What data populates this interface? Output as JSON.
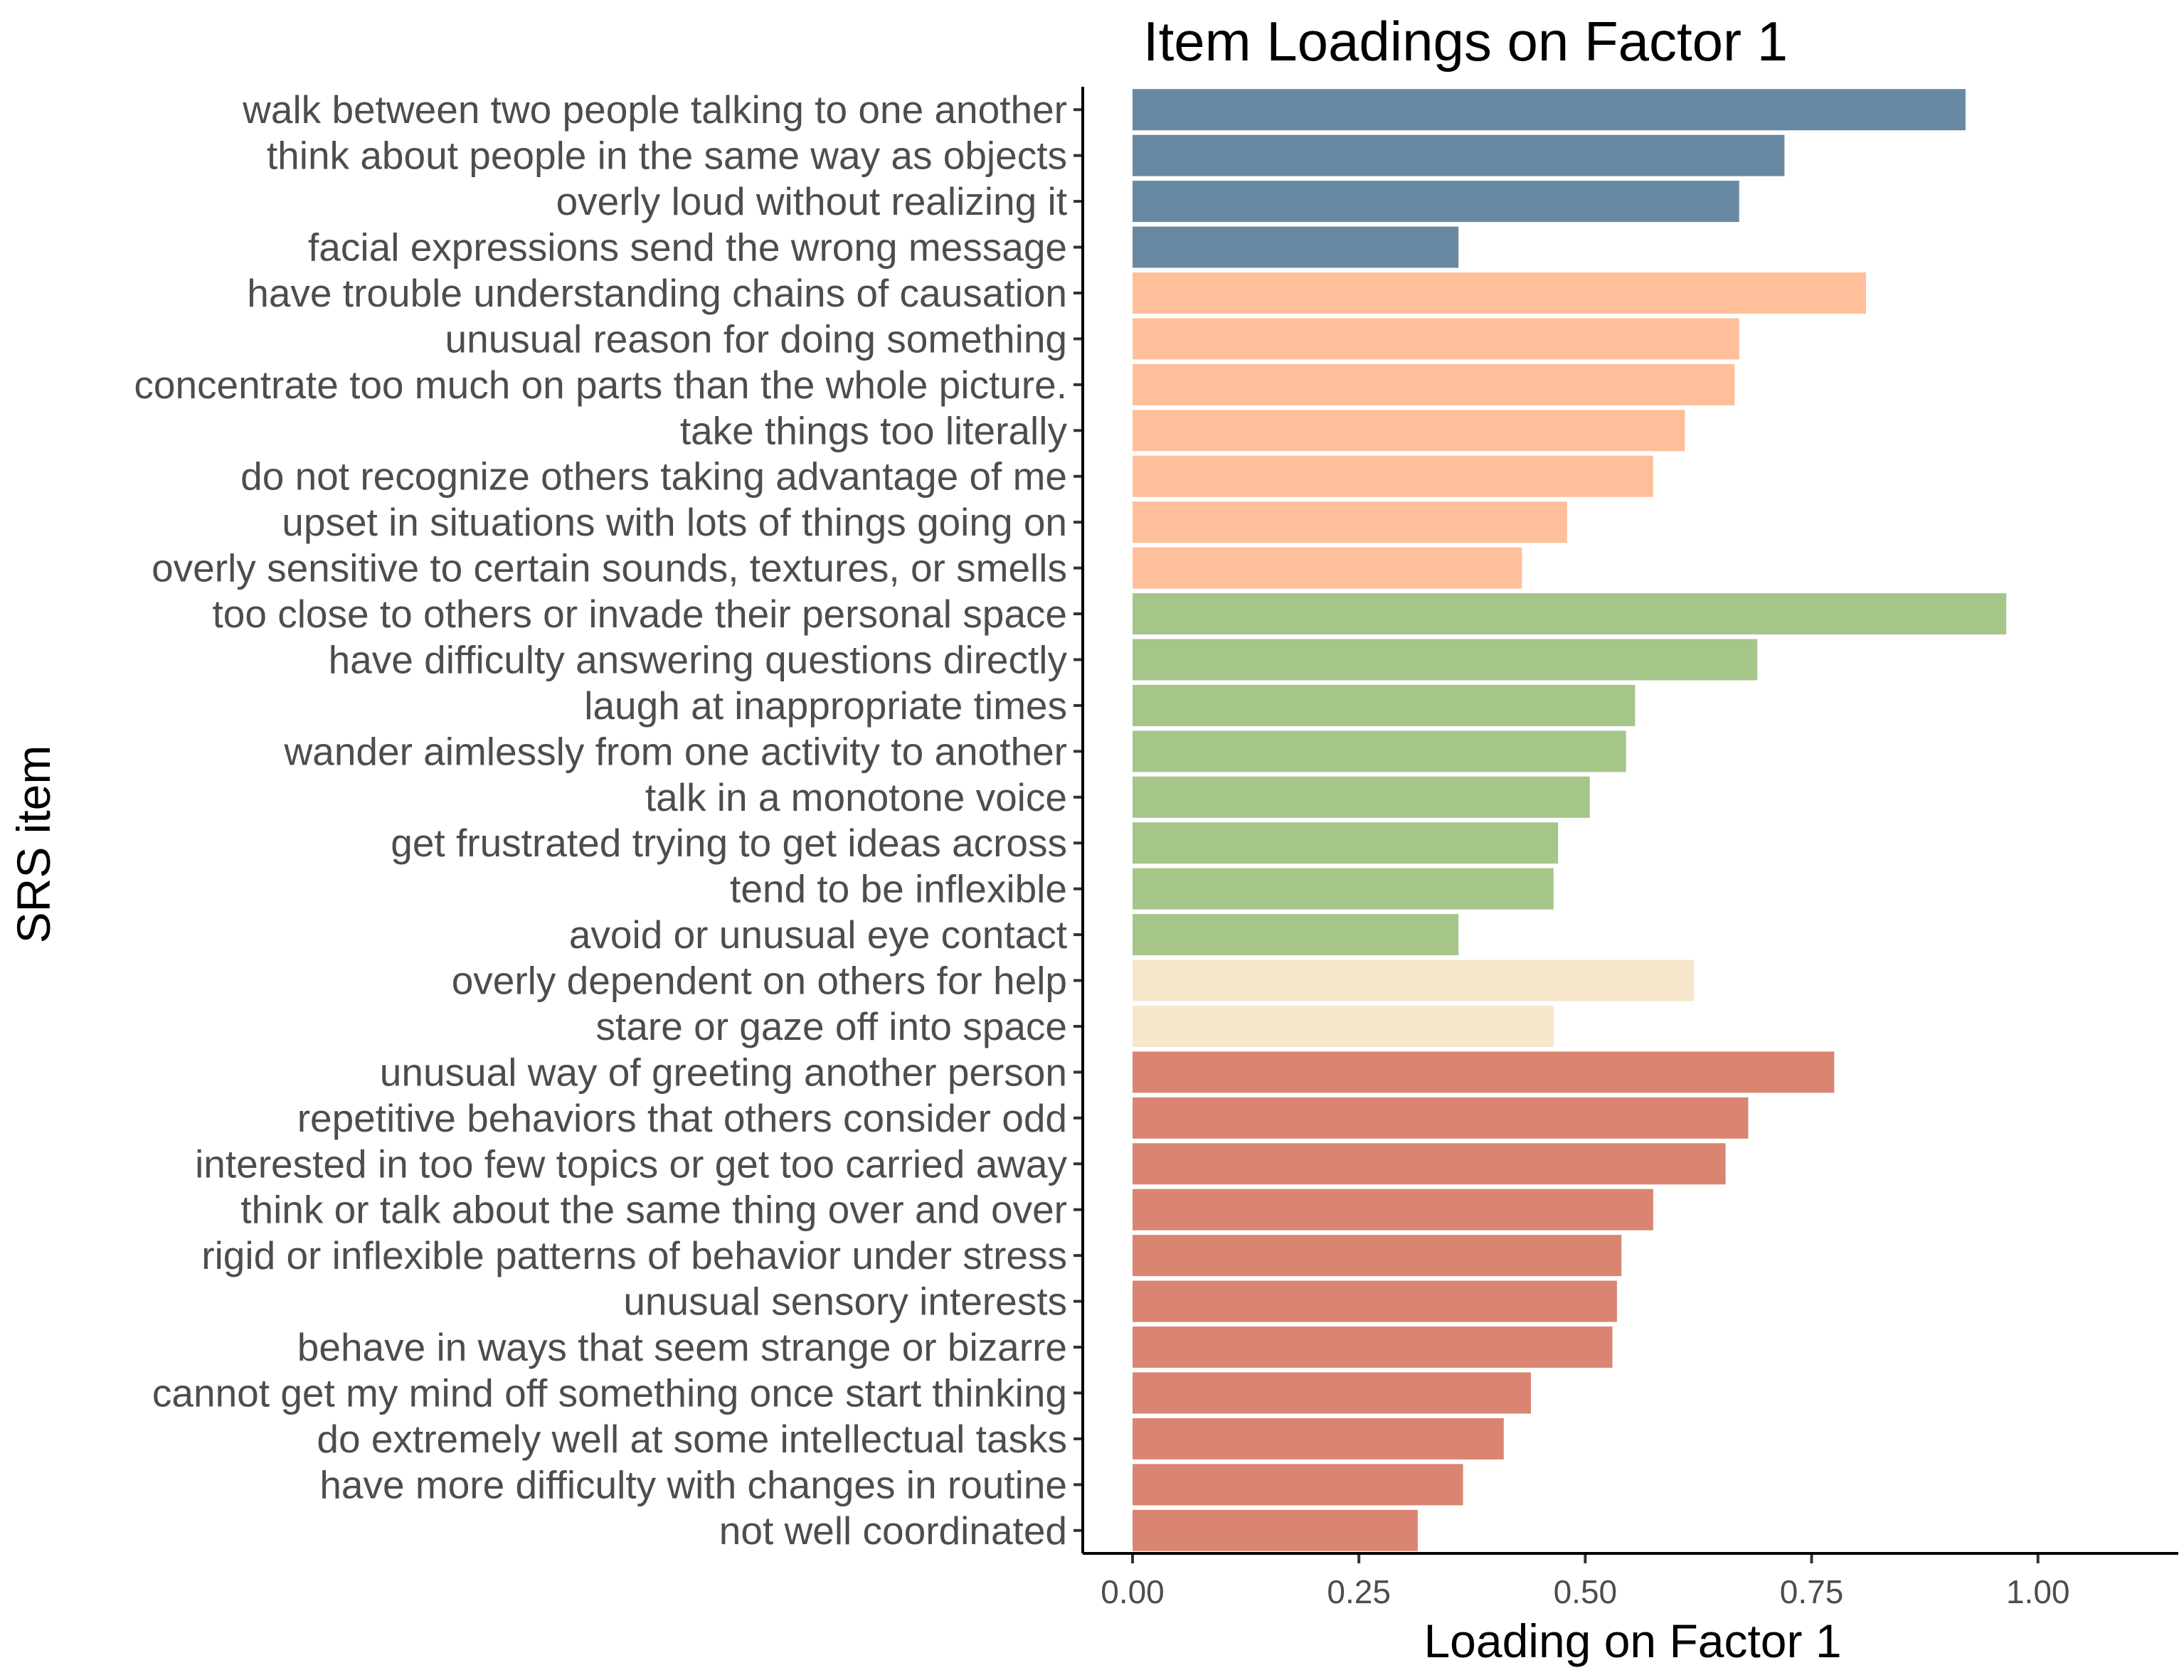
{
  "chart_data": {
    "type": "bar",
    "orientation": "horizontal",
    "title": "Item Loadings on Factor 1",
    "xlabel": "Loading on Factor 1",
    "ylabel": "SRS item",
    "xlim": [
      -0.055,
      1.155
    ],
    "xticks": [
      0,
      0.25,
      0.5,
      0.75,
      1
    ],
    "xtick_labels": [
      "0.00",
      "0.25",
      "0.50",
      "0.75",
      "1.00"
    ],
    "grid": false,
    "legend": "none",
    "categories": [
      "walk between two people talking to one another",
      "think about people in the same way as objects",
      "overly loud without realizing it",
      "facial expressions send the wrong message",
      "have trouble understanding chains of causation",
      "unusual reason for doing something",
      "concentrate too much on parts than the whole picture.",
      "take things too literally",
      "do not recognize others taking advantage of me",
      "upset in situations with lots of things going on",
      "overly sensitive to certain sounds, textures, or smells",
      "too close to others or invade their personal space",
      "have difficulty answering questions directly",
      "laugh at inappropriate times",
      "wander aimlessly from one activity to another",
      "talk in a monotone voice",
      "get frustrated trying to get ideas across",
      "tend to be inflexible",
      "avoid or unusual eye contact",
      "overly dependent on others for help",
      "stare or gaze off into space",
      "unusual way of greeting another person",
      "repetitive behaviors that others consider odd",
      "interested in too few topics or get too carried away",
      "think or talk about the same thing over and over",
      "rigid or inflexible patterns of behavior under stress",
      "unusual sensory interests",
      "behave in ways that seem strange or bizarre",
      "cannot get my mind off something once start thinking",
      "do extremely well at some intellectual tasks",
      "have more difficulty with changes in routine",
      "not well coordinated"
    ],
    "values": [
      0.92,
      0.72,
      0.67,
      0.36,
      0.81,
      0.67,
      0.665,
      0.61,
      0.575,
      0.48,
      0.43,
      0.965,
      0.69,
      0.555,
      0.545,
      0.505,
      0.47,
      0.465,
      0.36,
      0.62,
      0.465,
      0.775,
      0.68,
      0.655,
      0.575,
      0.54,
      0.535,
      0.53,
      0.44,
      0.41,
      0.365,
      0.315
    ],
    "groups": [
      0,
      0,
      0,
      0,
      1,
      1,
      1,
      1,
      1,
      1,
      1,
      2,
      2,
      2,
      2,
      2,
      2,
      2,
      2,
      3,
      3,
      4,
      4,
      4,
      4,
      4,
      4,
      4,
      4,
      4,
      4,
      4
    ],
    "group_colors": [
      "#6789a2",
      "#ffbf9a",
      "#a6c589",
      "#f6e6cb",
      "#d98572"
    ]
  }
}
